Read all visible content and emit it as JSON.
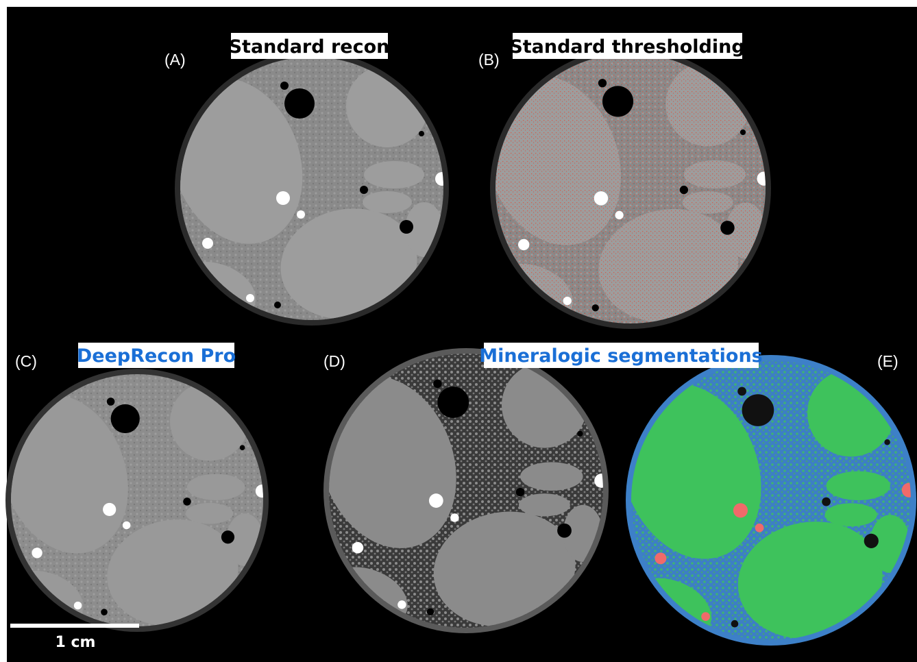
{
  "panels": {
    "a": {
      "label": "(A)",
      "title": "Standard recon"
    },
    "b": {
      "label": "(B)",
      "title": "Standard thresholding"
    },
    "c": {
      "label": "(C)",
      "title": "DeepRecon Pro"
    },
    "d": {
      "label": "(D)"
    },
    "e": {
      "label": "(E)"
    }
  },
  "shared_title": "Mineralogic segmentations",
  "scale_bar": {
    "label": "1 cm"
  }
}
